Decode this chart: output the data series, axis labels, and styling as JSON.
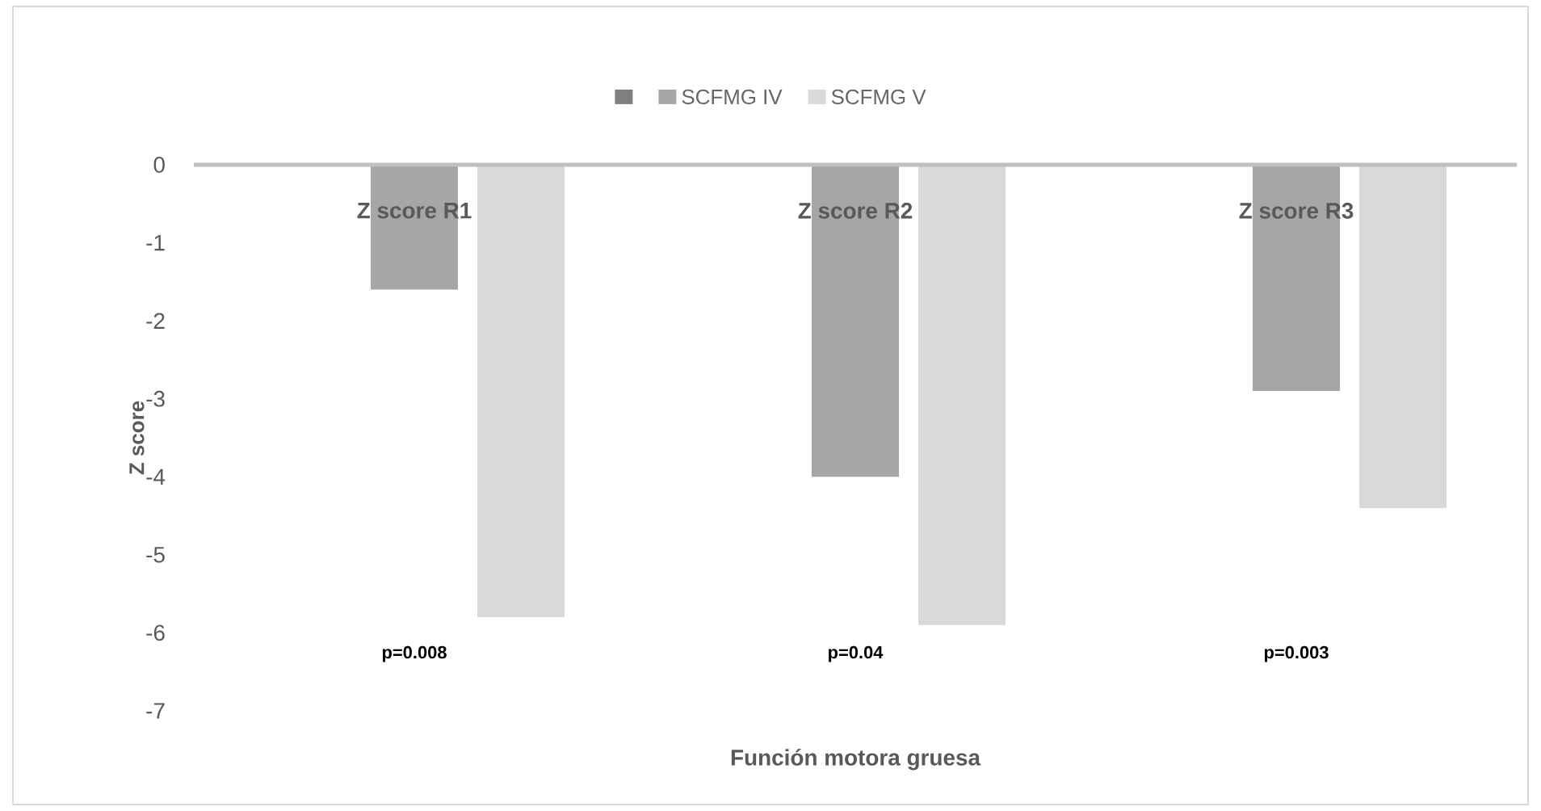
{
  "chart_data": {
    "type": "bar",
    "xlabel": "Función motora gruesa",
    "ylabel": "Z score",
    "categories": [
      "Z score R1",
      "Z score R2",
      "Z score R3"
    ],
    "series": [
      {
        "color": "#7f7f7f",
        "values": [
          null,
          null,
          null
        ]
      },
      {
        "name": "SCFMG IV",
        "color": "#a6a6a6",
        "values": [
          -1.6,
          -4.0,
          -2.9
        ]
      },
      {
        "name": "SCFMG V",
        "color": "#d9d9d9",
        "values": [
          -5.8,
          -5.9,
          -4.4
        ]
      }
    ],
    "ylim": [
      -7,
      0
    ],
    "yticks": [
      0,
      -1,
      -2,
      -3,
      -4,
      -5,
      -6,
      -7
    ],
    "grid": false,
    "legend": "top",
    "annotations": [
      "p=0.008",
      "p=0.04",
      "p=0.003"
    ]
  }
}
